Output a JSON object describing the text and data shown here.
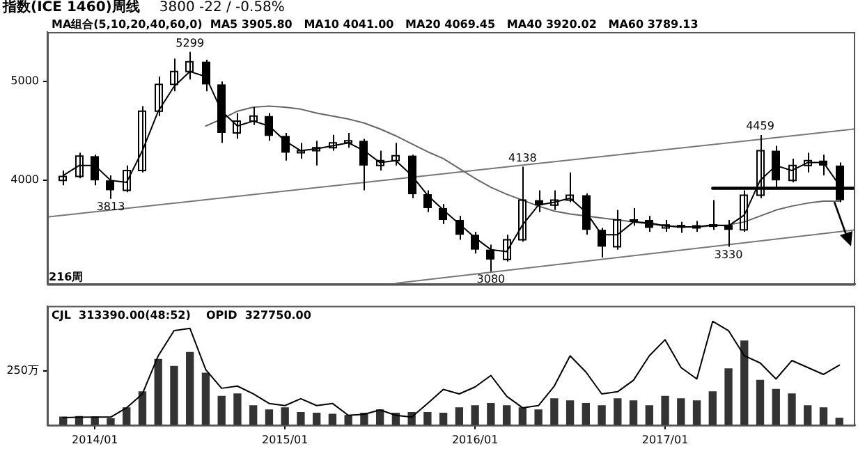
{
  "chart_data": [
    {
      "type": "candlestick",
      "title": "指数(ICE 1460)周线",
      "subtitle": "3800   -22 / -0.58%",
      "color": "#000000",
      "x": [
        "2013-11",
        "2013-12",
        "2014-01",
        "2014-02",
        "2014-03",
        "2014-04",
        "2014-05",
        "2014-06",
        "2014-07",
        "2014-08",
        "2014-09",
        "2014-10",
        "2014-11",
        "2014-12",
        "2015-01",
        "2015-02",
        "2015-03",
        "2015-04",
        "2015-05",
        "2015-06",
        "2015-07",
        "2015-08",
        "2015-09",
        "2015-10",
        "2015-11",
        "2015-12",
        "2016-01",
        "2016-02",
        "2016-03",
        "2016-04",
        "2016-05",
        "2016-06",
        "2016-07",
        "2016-08",
        "2016-09",
        "2016-10",
        "2016-11",
        "2016-12",
        "2017-01",
        "2017-02",
        "2017-03",
        "2017-04",
        "2017-05",
        "2017-06",
        "2017-07",
        "2017-08",
        "2017-09",
        "2017-10",
        "2017-11",
        "2017-12"
      ],
      "ohlc": [
        [
          4000,
          4100,
          3950,
          4040
        ],
        [
          4040,
          4280,
          4020,
          4245
        ],
        [
          4245,
          4260,
          3950,
          4000
        ],
        [
          4000,
          4050,
          3813,
          3900
        ],
        [
          3900,
          4150,
          3880,
          4100
        ],
        [
          4100,
          4750,
          4080,
          4700
        ],
        [
          4700,
          5050,
          4650,
          4970
        ],
        [
          4970,
          5230,
          4900,
          5100
        ],
        [
          5100,
          5299,
          5020,
          5200
        ],
        [
          5200,
          5220,
          4900,
          4970
        ],
        [
          4970,
          5000,
          4380,
          4480
        ],
        [
          4480,
          4680,
          4420,
          4600
        ],
        [
          4600,
          4740,
          4560,
          4650
        ],
        [
          4650,
          4680,
          4400,
          4450
        ],
        [
          4450,
          4480,
          4200,
          4280
        ],
        [
          4280,
          4380,
          4220,
          4300
        ],
        [
          4300,
          4400,
          4150,
          4330
        ],
        [
          4330,
          4460,
          4300,
          4380
        ],
        [
          4380,
          4480,
          4330,
          4400
        ],
        [
          4400,
          4420,
          3900,
          4150
        ],
        [
          4150,
          4300,
          4100,
          4200
        ],
        [
          4200,
          4380,
          4150,
          4250
        ],
        [
          4250,
          4260,
          3820,
          3860
        ],
        [
          3860,
          3900,
          3680,
          3720
        ],
        [
          3720,
          3760,
          3560,
          3600
        ],
        [
          3600,
          3640,
          3400,
          3450
        ],
        [
          3450,
          3480,
          3260,
          3300
        ],
        [
          3300,
          3350,
          3080,
          3200
        ],
        [
          3200,
          3450,
          3180,
          3400
        ],
        [
          3400,
          4138,
          3380,
          3800
        ],
        [
          3800,
          3900,
          3680,
          3750
        ],
        [
          3750,
          3900,
          3700,
          3800
        ],
        [
          3800,
          4080,
          3780,
          3850
        ],
        [
          3850,
          3870,
          3450,
          3500
        ],
        [
          3500,
          3520,
          3220,
          3330
        ],
        [
          3330,
          3700,
          3300,
          3600
        ],
        [
          3600,
          3720,
          3540,
          3600
        ],
        [
          3600,
          3640,
          3480,
          3520
        ],
        [
          3520,
          3600,
          3480,
          3550
        ],
        [
          3550,
          3580,
          3470,
          3520
        ],
        [
          3520,
          3590,
          3480,
          3540
        ],
        [
          3540,
          3800,
          3500,
          3550
        ],
        [
          3550,
          3600,
          3330,
          3500
        ],
        [
          3500,
          3900,
          3480,
          3850
        ],
        [
          3850,
          4459,
          3820,
          4300
        ],
        [
          4300,
          4350,
          3920,
          4000
        ],
        [
          4000,
          4220,
          3980,
          4150
        ],
        [
          4150,
          4280,
          4080,
          4200
        ],
        [
          4200,
          4260,
          4050,
          4150
        ],
        [
          4150,
          4180,
          3780,
          3800
        ]
      ],
      "series": [
        {
          "type": "line",
          "color": "#000000",
          "values": [
            4050,
            4150,
            4150,
            4000,
            3980,
            4300,
            4700,
            4950,
            5100,
            5050,
            4700,
            4550,
            4600,
            4550,
            4400,
            4300,
            4320,
            4350,
            4380,
            4300,
            4180,
            4200,
            4050,
            3850,
            3700,
            3560,
            3420,
            3300,
            3280,
            3550,
            3750,
            3780,
            3820,
            3680,
            3450,
            3450,
            3580,
            3570,
            3540,
            3530,
            3530,
            3550,
            3540,
            3650,
            4000,
            4150,
            4100,
            4180,
            4180,
            3950
          ]
        },
        {
          "type": "line",
          "color": "#666666",
          "values": [
            null,
            null,
            null,
            null,
            null,
            null,
            null,
            null,
            null,
            4550,
            4620,
            4700,
            4740,
            4750,
            4740,
            4720,
            4680,
            4650,
            4620,
            4580,
            4520,
            4450,
            4370,
            4290,
            4220,
            4120,
            4020,
            3930,
            3860,
            3800,
            3740,
            3690,
            3660,
            3640,
            3620,
            3600,
            3580,
            3560,
            3540,
            3530,
            3530,
            3540,
            3550,
            3580,
            3640,
            3700,
            3740,
            3770,
            3790,
            3790
          ]
        },
        {
          "type": "line",
          "color": "#777777",
          "x": [
            "2013-10",
            "2018-01"
          ],
          "values": [
            3630,
            4520
          ]
        },
        {
          "type": "line",
          "color": "#777777",
          "x": [
            "2015-08",
            "2018-01"
          ],
          "values": [
            2960,
            3500
          ]
        },
        {
          "type": "line",
          "color": "#000000",
          "x": [
            "2017-04",
            "2018-01"
          ],
          "values": [
            3920,
            3920
          ]
        }
      ],
      "xlim": [
        "2013-10",
        "2018-01"
      ],
      "ylim": [
        2950,
        5500
      ],
      "yticks": [
        4000,
        5000
      ],
      "tick_labels": "y",
      "legend": false,
      "annotations": [
        "MA组合(5,10,20,40,60,0)  MA5 3905.80   MA10 4041.00   MA20 4069.45   MA40 3920.02   MA60 3789.13",
        "216周",
        {
          "text": "5299",
          "x": "2014-07",
          "y": 5299
        },
        {
          "text": "3813",
          "x": "2014-02",
          "y": 3813
        },
        {
          "text": "3080",
          "x": "2016-02",
          "y": 3080
        },
        {
          "text": "4138",
          "x": "2016-04",
          "y": 4138
        },
        {
          "text": "3330",
          "x": "2017-05",
          "y": 3330
        },
        {
          "text": "4459",
          "x": "2017-07",
          "y": 4459
        }
      ]
    },
    {
      "type": "bar",
      "x": [
        "2013-11",
        "2013-12",
        "2014-01",
        "2014-02",
        "2014-03",
        "2014-04",
        "2014-05",
        "2014-06",
        "2014-07",
        "2014-08",
        "2014-09",
        "2014-10",
        "2014-11",
        "2014-12",
        "2015-01",
        "2015-02",
        "2015-03",
        "2015-04",
        "2015-05",
        "2015-06",
        "2015-07",
        "2015-08",
        "2015-09",
        "2015-10",
        "2015-11",
        "2015-12",
        "2016-01",
        "2016-02",
        "2016-03",
        "2016-04",
        "2016-05",
        "2016-06",
        "2016-07",
        "2016-08",
        "2016-09",
        "2016-10",
        "2016-11",
        "2016-12",
        "2017-01",
        "2017-02",
        "2017-03",
        "2017-04",
        "2017-05",
        "2017-06",
        "2017-07",
        "2017-08",
        "2017-09",
        "2017-10",
        "2017-11",
        "2017-12"
      ],
      "series": [
        {
          "color": "#333333",
          "values": [
            37,
            40,
            37,
            30,
            80,
            154,
            303,
            271,
            335,
            240,
            133,
            144,
            90,
            70,
            80,
            58,
            55,
            50,
            45,
            55,
            70,
            55,
            58,
            58,
            55,
            80,
            90,
            100,
            90,
            80,
            70,
            122,
            112,
            100,
            90,
            122,
            112,
            90,
            133,
            122,
            112,
            154,
            260,
            388,
            207,
            165,
            144,
            90,
            80,
            32
          ]
        },
        {
          "type": "line",
          "color": "#000000",
          "values": [
            35,
            36,
            37,
            37,
            80,
            144,
            320,
            436,
            447,
            256,
            170,
            180,
            144,
            100,
            90,
            122,
            90,
            100,
            45,
            50,
            70,
            45,
            37,
            100,
            165,
            144,
            176,
            229,
            133,
            80,
            90,
            180,
            320,
            245,
            144,
            154,
            207,
            320,
            394,
            266,
            213,
            479,
            436,
            320,
            287,
            213,
            298,
            266,
            234,
            277
          ]
        }
      ],
      "xlim": [
        "2013-10",
        "2018-01"
      ],
      "xticks": [
        {
          "value": "2014-01",
          "label": "2014/01"
        },
        {
          "value": "2015-01",
          "label": "2015/01"
        },
        {
          "value": "2016-01",
          "label": "2016/01"
        },
        {
          "value": "2017-01",
          "label": "2017/01"
        }
      ],
      "ylim": [
        0,
        550
      ],
      "yticks": [
        {
          "value": 250,
          "label": "250万"
        }
      ],
      "legend": false,
      "annotations": [
        "CJL  313390.00(48:52)    OPID  327750.00"
      ]
    }
  ]
}
